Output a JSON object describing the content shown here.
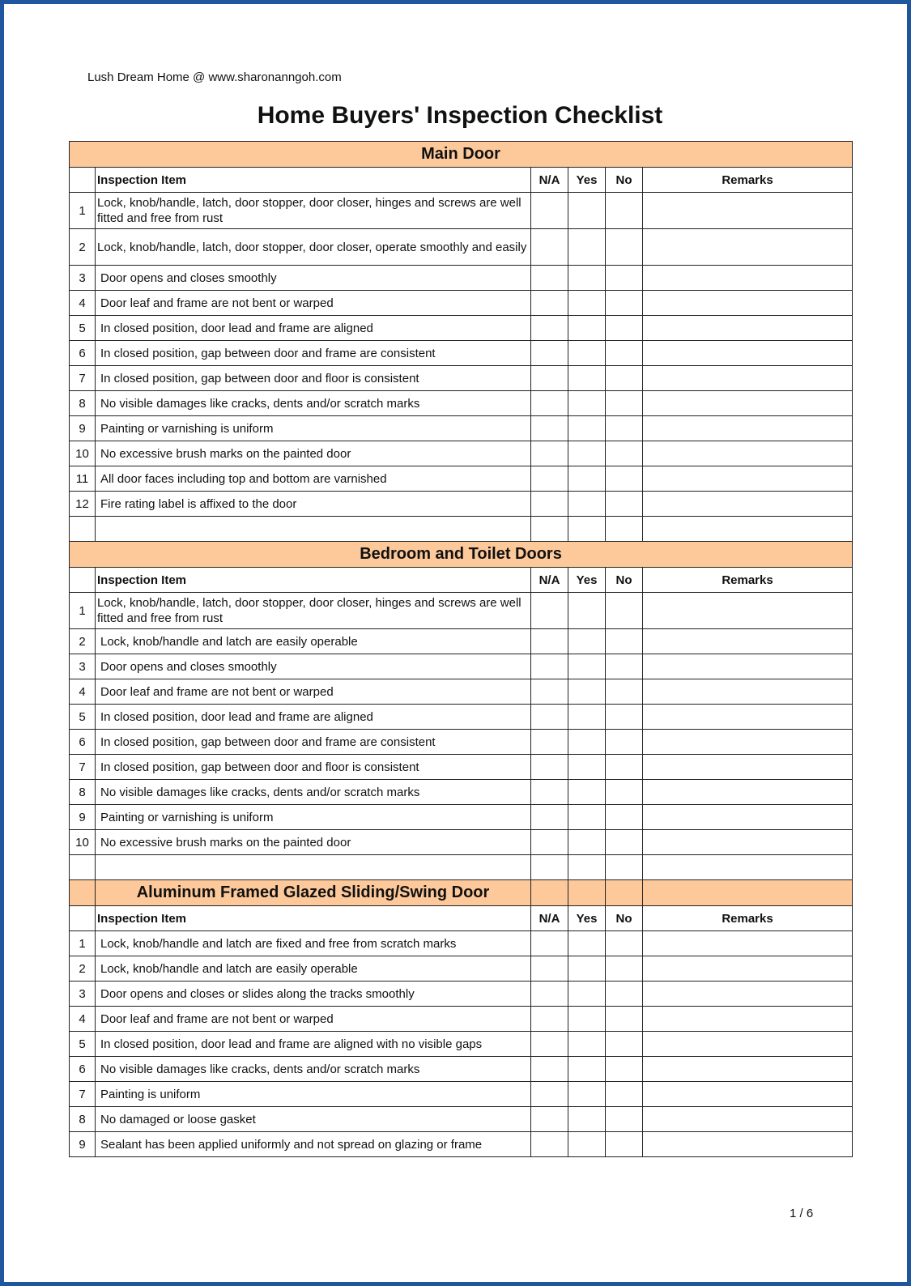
{
  "header": {
    "site": "Lush Dream Home @ www.sharonanngoh.com",
    "title": "Home Buyers' Inspection Checklist"
  },
  "columns": {
    "item": "Inspection Item",
    "na": "N/A",
    "yes": "Yes",
    "no": "No",
    "remarks": "Remarks"
  },
  "colors": {
    "section_header": "#fdc99a",
    "frame": "#1f56a0"
  },
  "sections": [
    {
      "title": "Main Door",
      "span": "full",
      "blank_row": true,
      "items": [
        "Lock, knob/handle, latch, door stopper, door closer, hinges and screws are well fitted and free from rust",
        "Lock, knob/handle, latch, door stopper, door closer, operate smoothly and easily",
        "Door opens and closes smoothly",
        "Door leaf and frame are not bent or warped",
        "In closed position, door lead and frame are aligned",
        "In closed position, gap between door and frame are consistent",
        "In closed position, gap between door and floor is consistent",
        "No visible damages like cracks, dents and/or scratch marks",
        "Painting or varnishing is uniform",
        "No excessive brush marks on the painted door",
        "All door faces including top and bottom are varnished",
        "Fire rating label is affixed to the door"
      ]
    },
    {
      "title": "Bedroom and Toilet Doors",
      "span": "full",
      "blank_row": true,
      "items": [
        "Lock, knob/handle, latch, door stopper, door closer, hinges and screws are well fitted and free from rust",
        "Lock, knob/handle and latch are easily operable",
        "Door opens and closes smoothly",
        "Door leaf and frame are not bent or warped",
        "In closed position, door lead and frame are aligned",
        "In closed position, gap between door and frame are consistent",
        "In closed position, gap between door and floor is consistent",
        "No visible damages like cracks, dents and/or scratch marks",
        "Painting or varnishing is uniform",
        "No excessive brush marks on the painted door"
      ]
    },
    {
      "title": "Aluminum Framed Glazed Sliding/Swing Door",
      "span": "item",
      "blank_row": false,
      "items": [
        "Lock, knob/handle and latch are fixed and free from scratch marks",
        "Lock, knob/handle and latch are easily operable",
        "Door opens and closes or slides along the tracks smoothly",
        "Door leaf and frame are not bent or warped",
        "In closed position, door lead and frame are aligned with no visible gaps",
        "No visible damages like cracks, dents and/or scratch marks",
        "Painting is uniform",
        "No damaged or loose gasket",
        "Sealant has been applied uniformly and not spread on glazing or frame"
      ]
    }
  ],
  "footer": {
    "page": "1 / 6"
  }
}
